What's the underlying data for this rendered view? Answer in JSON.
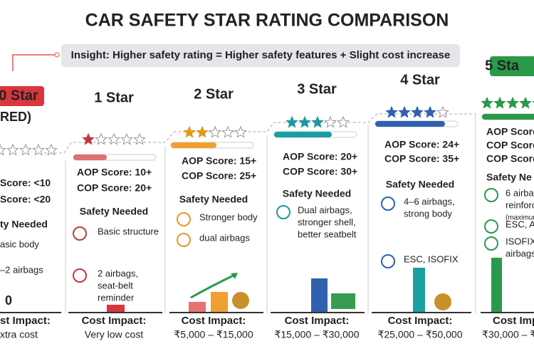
{
  "header": {
    "title": "CAR SAFETY STAR RATING COMPARISON",
    "insight": "Insight: Higher safety rating = Higher safety features + Slight cost increase"
  },
  "columns": [
    {
      "rating": "0 Star",
      "rating_note": "RED)",
      "scores": [
        "Score: <10",
        "Score: <20"
      ],
      "safety_title": "ty Needed",
      "items": [
        [
          "asic body"
        ],
        [
          "–2 airbags"
        ]
      ],
      "cost_amount": "0",
      "cost_title": "st Impact:",
      "cost_value": "xtra cost"
    },
    {
      "rating": "1 Star",
      "scores": [
        "AOP Score: 10+",
        "COP Score: 20+"
      ],
      "safety_title": "Safety Needed",
      "items": [
        [
          "Basic structure"
        ],
        [
          "2 airbags,",
          "seat-belt",
          "reminder"
        ]
      ],
      "cost_title": "Cost Impact:",
      "cost_value": "Very low cost"
    },
    {
      "rating": "2 Star",
      "scores": [
        "AOP Score: 15+",
        "COP Score: 25+"
      ],
      "safety_title": "Safety Needed",
      "items": [
        [
          "Stronger body"
        ],
        [
          "dual airbags"
        ]
      ],
      "cost_title": "Cost Impact:",
      "cost_value": "₹5,000 – ₹15,000"
    },
    {
      "rating": "3 Star",
      "scores": [
        "AOP Score: 20+",
        "COP Score: 30+"
      ],
      "safety_title": "Safety Needed",
      "items": [
        [
          "Dual airbags,",
          "stronger shell,",
          "better seatbelt"
        ]
      ],
      "cost_title": "Cost Impact:",
      "cost_value": "₹15,000 – ₹30,000"
    },
    {
      "rating": "4 Star",
      "scores": [
        "AOP Score: 24+",
        "COP Score: 35+"
      ],
      "safety_title": "Safety Needed",
      "items": [
        [
          "4–6 airbags,",
          "strong body"
        ],
        [
          "ESC, ISOFIX"
        ]
      ],
      "cost_title": "Cost Impact:",
      "cost_value": "₹25,000 – ₹50,000"
    },
    {
      "rating": "5 Sta",
      "scores": [
        "AOP Score",
        "COP Score",
        "COP Score"
      ],
      "safety_title": "Safety Ne",
      "items": [
        [
          "6 airba",
          "reinforc",
          "(maximum"
        ],
        [
          "ESC, A"
        ],
        [
          "ISOFIX",
          "airbags"
        ]
      ],
      "cost_title": "Cost Impact",
      "cost_value": "₹30,000 – ₹"
    }
  ]
}
